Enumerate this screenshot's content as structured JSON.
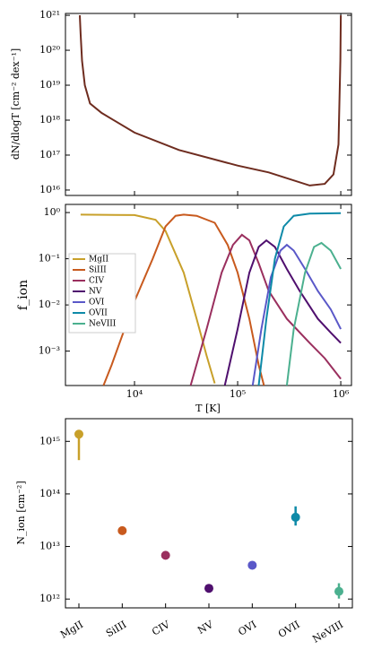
{
  "chart_data": [
    {
      "type": "line",
      "ylabel": "dN/dlogT [cm⁻² dex⁻¹]",
      "log_x": true,
      "log_y": true,
      "xlim": [
        2140,
        1270000
      ],
      "ylim": [
        7000000000000000.0,
        1.13e+21
      ],
      "yticks": [
        {
          "value": 1e+16,
          "label": "10¹⁶"
        },
        {
          "value": 1e+17,
          "label": "10¹⁷"
        },
        {
          "value": 1e+18,
          "label": "10¹⁸"
        },
        {
          "value": 1e+19,
          "label": "10¹⁹"
        },
        {
          "value": 1e+20,
          "label": "10²⁰"
        },
        {
          "value": 1e+21,
          "label": "10²¹"
        }
      ],
      "series": [
        {
          "color": "#6e2c1f",
          "x": [
            2950,
            3000,
            3100,
            3300,
            3700,
            4800,
            10000,
            27000,
            100000,
            200000,
            500000,
            700000,
            850000,
            950000,
            990000,
            1000000
          ],
          "values": [
            1e+21,
            3e+20,
            5e+19,
            1e+19,
            3e+18,
            1.6e+18,
            4.4e+17,
            1.4e+17,
            5e+16,
            3.2e+16,
            1.35e+16,
            1.5e+16,
            2.8e+16,
            2e+17,
            5e+19,
            1e+21
          ]
        }
      ]
    },
    {
      "type": "line",
      "ylabel": "f_ion",
      "xlabel": "T [K]",
      "log_x": true,
      "log_y": true,
      "legend": "upper-left",
      "xlim": [
        2140,
        1270000
      ],
      "ylim": [
        0.00018,
        1.5
      ],
      "xticks": [
        {
          "value": 10000,
          "label": "10⁴"
        },
        {
          "value": 100000,
          "label": "10⁵"
        },
        {
          "value": 1000000,
          "label": "10⁶"
        }
      ],
      "yticks": [
        {
          "value": 0.001,
          "label": "10⁻³"
        },
        {
          "value": 0.01,
          "label": "10⁻²"
        },
        {
          "value": 0.1,
          "label": "10⁻¹"
        },
        {
          "value": 1,
          "label": "10⁰"
        }
      ],
      "series": [
        {
          "name": "MgII",
          "color": "#c8a02a",
          "x": [
            3000,
            10000,
            16000,
            20000,
            30000,
            40000,
            50000,
            60000
          ],
          "values": [
            0.9,
            0.88,
            0.7,
            0.4,
            0.05,
            0.005,
            0.0008,
            0.0002
          ]
        },
        {
          "name": "SiIII",
          "color": "#c85a1e",
          "x": [
            5000,
            6000,
            8000,
            10000,
            15000,
            20000,
            25000,
            30000,
            40000,
            60000,
            80000,
            100000,
            130000,
            160000,
            180000
          ],
          "values": [
            0.00018,
            0.0005,
            0.003,
            0.012,
            0.1,
            0.5,
            0.85,
            0.9,
            0.85,
            0.6,
            0.2,
            0.05,
            0.005,
            0.0005,
            0.00018
          ]
        },
        {
          "name": "CIV",
          "color": "#9a2f5e",
          "x": [
            35000,
            50000,
            70000,
            90000,
            110000,
            130000,
            160000,
            200000,
            300000,
            500000,
            700000,
            1000000
          ],
          "values": [
            0.00018,
            0.003,
            0.05,
            0.2,
            0.33,
            0.25,
            0.08,
            0.02,
            0.005,
            0.0015,
            0.0007,
            0.00025
          ]
        },
        {
          "name": "NV",
          "color": "#4f0f6e",
          "x": [
            75000,
            100000,
            130000,
            160000,
            190000,
            230000,
            300000,
            400000,
            600000,
            800000,
            1000000
          ],
          "values": [
            0.00018,
            0.003,
            0.05,
            0.18,
            0.25,
            0.18,
            0.06,
            0.02,
            0.005,
            0.0025,
            0.0015
          ]
        },
        {
          "name": "OVI",
          "color": "#5a58c8",
          "x": [
            140000,
            170000,
            210000,
            260000,
            300000,
            350000,
            450000,
            600000,
            800000,
            1000000
          ],
          "values": [
            0.00018,
            0.003,
            0.04,
            0.15,
            0.2,
            0.15,
            0.06,
            0.02,
            0.008,
            0.003
          ]
        },
        {
          "name": "OVII",
          "color": "#0e8aa8",
          "x": [
            160000,
            190000,
            230000,
            280000,
            350000,
            500000,
            1000000
          ],
          "values": [
            0.00018,
            0.005,
            0.1,
            0.5,
            0.85,
            0.95,
            0.97
          ]
        },
        {
          "name": "NeVIII",
          "color": "#4bb08f",
          "x": [
            300000,
            350000,
            450000,
            550000,
            650000,
            800000,
            1000000
          ],
          "values": [
            0.00018,
            0.003,
            0.05,
            0.18,
            0.22,
            0.15,
            0.06
          ]
        }
      ]
    },
    {
      "type": "errorbar",
      "ylabel": "N_ion [cm⁻²]",
      "log_y": true,
      "ylim": [
        680000000000,
        2700000000000000.0
      ],
      "yticks": [
        {
          "value": 1000000000000.0,
          "label": "10¹²"
        },
        {
          "value": 10000000000000.0,
          "label": "10¹³"
        },
        {
          "value": 100000000000000.0,
          "label": "10¹⁴"
        },
        {
          "value": 1000000000000000.0,
          "label": "10¹⁵"
        }
      ],
      "categories": [
        "MgII",
        "SiIII",
        "CIV",
        "NV",
        "OVI",
        "OVII",
        "NeVIII"
      ],
      "colors": [
        "#c8a02a",
        "#c85a1e",
        "#9a2f5e",
        "#4f0f6e",
        "#5a58c8",
        "#0e8aa8",
        "#4bb08f"
      ],
      "values": [
        1370000000000000.0,
        20000000000000.0,
        6800000000000.0,
        1600000000000.0,
        4400000000000.0,
        36000000000000.0,
        1400000000000.0
      ],
      "lower": [
        440000000000000.0,
        null,
        null,
        null,
        null,
        25000000000000.0,
        1020000000000.0
      ],
      "upper": [
        1600000000000000.0,
        null,
        null,
        null,
        null,
        58000000000000.0,
        2000000000000.0
      ]
    }
  ]
}
